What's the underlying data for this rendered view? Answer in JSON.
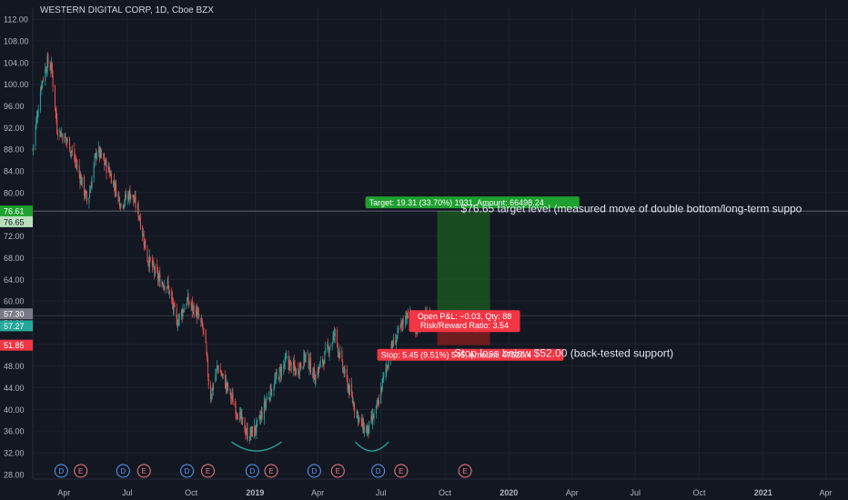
{
  "header": {
    "title": "WESTERN DIGITAL CORP, 1D, Cboe BZX"
  },
  "colors": {
    "background": "#131722",
    "grid": "#1e222d",
    "text": "#b2b5be",
    "up": "#26a69a",
    "down": "#ef5350",
    "target_zone": "#1b5e20",
    "stop_zone": "#7f1d1d",
    "target_label": "#1e9f2e",
    "stop_label": "#f23645",
    "cup_arc": "#26a69a",
    "dividend_badge": "#2962ff",
    "earnings_badge": "#f23645"
  },
  "chart_data": {
    "type": "candlestick",
    "ylim": [
      26,
      114
    ],
    "y_ticks": [
      "112.00",
      "108.00",
      "104.00",
      "100.00",
      "96.00",
      "92.00",
      "88.00",
      "84.00",
      "80.00",
      "76.00",
      "72.00",
      "68.00",
      "64.00",
      "60.00",
      "56.00",
      "52.00",
      "48.00",
      "44.00",
      "40.00",
      "36.00",
      "32.00",
      "28.00"
    ],
    "x_labels": [
      {
        "label": "Apr",
        "date": "2018-04-01"
      },
      {
        "label": "Jul",
        "date": "2018-07-01"
      },
      {
        "label": "Oct",
        "date": "2018-10-01"
      },
      {
        "label": "2019",
        "date": "2019-01-01"
      },
      {
        "label": "Apr",
        "date": "2019-04-01"
      },
      {
        "label": "Jul",
        "date": "2019-07-01"
      },
      {
        "label": "Oct",
        "date": "2019-10-01"
      },
      {
        "label": "2020",
        "date": "2020-01-01"
      },
      {
        "label": "Apr",
        "date": "2020-04-01"
      },
      {
        "label": "Jul",
        "date": "2020-07-01"
      },
      {
        "label": "Oct",
        "date": "2020-10-01"
      },
      {
        "label": "2021",
        "date": "2021-01-01"
      },
      {
        "label": "Apr",
        "date": "2021-04-01"
      }
    ],
    "x_range": [
      "2018-02-15",
      "2021-05-03"
    ],
    "price_path": [
      {
        "date": "2018-02-15",
        "close": 88
      },
      {
        "date": "2018-02-27",
        "close": 100
      },
      {
        "date": "2018-03-08",
        "close": 104
      },
      {
        "date": "2018-03-14",
        "close": 103
      },
      {
        "date": "2018-03-22",
        "close": 92
      },
      {
        "date": "2018-04-08",
        "close": 89
      },
      {
        "date": "2018-04-22",
        "close": 84
      },
      {
        "date": "2018-05-05",
        "close": 78
      },
      {
        "date": "2018-05-18",
        "close": 88
      },
      {
        "date": "2018-06-05",
        "close": 84
      },
      {
        "date": "2018-06-22",
        "close": 78
      },
      {
        "date": "2018-07-06",
        "close": 80
      },
      {
        "date": "2018-07-18",
        "close": 76
      },
      {
        "date": "2018-07-30",
        "close": 68
      },
      {
        "date": "2018-08-15",
        "close": 64
      },
      {
        "date": "2018-08-28",
        "close": 63
      },
      {
        "date": "2018-09-10",
        "close": 56
      },
      {
        "date": "2018-09-25",
        "close": 60
      },
      {
        "date": "2018-10-08",
        "close": 58
      },
      {
        "date": "2018-10-20",
        "close": 54
      },
      {
        "date": "2018-10-28",
        "close": 42
      },
      {
        "date": "2018-11-08",
        "close": 48
      },
      {
        "date": "2018-11-22",
        "close": 44
      },
      {
        "date": "2018-12-05",
        "close": 40
      },
      {
        "date": "2018-12-22",
        "close": 35
      },
      {
        "date": "2019-01-05",
        "close": 37
      },
      {
        "date": "2019-01-18",
        "close": 42
      },
      {
        "date": "2019-02-02",
        "close": 46
      },
      {
        "date": "2019-02-15",
        "close": 49
      },
      {
        "date": "2019-03-01",
        "close": 47
      },
      {
        "date": "2019-03-15",
        "close": 50
      },
      {
        "date": "2019-03-28",
        "close": 46
      },
      {
        "date": "2019-04-12",
        "close": 50
      },
      {
        "date": "2019-04-26",
        "close": 54
      },
      {
        "date": "2019-05-06",
        "close": 48
      },
      {
        "date": "2019-05-20",
        "close": 42
      },
      {
        "date": "2019-06-03",
        "close": 37
      },
      {
        "date": "2019-06-12",
        "close": 36
      },
      {
        "date": "2019-06-25",
        "close": 40
      },
      {
        "date": "2019-07-05",
        "close": 46
      },
      {
        "date": "2019-07-18",
        "close": 52
      },
      {
        "date": "2019-07-30",
        "close": 55
      },
      {
        "date": "2019-08-08",
        "close": 58
      },
      {
        "date": "2019-08-20",
        "close": 55
      },
      {
        "date": "2019-09-01",
        "close": 57
      },
      {
        "date": "2019-09-10",
        "close": 57.3
      }
    ],
    "price_levels": [
      {
        "label": "76.61",
        "color": "#1e9f2e"
      },
      {
        "label": "76.65",
        "color": "#b8e0bc"
      },
      {
        "label": "57.30",
        "color": "#787b86"
      },
      {
        "label": "57.27",
        "color": "#26a69a"
      },
      {
        "label": "51.85",
        "color": "#f23645"
      }
    ],
    "position": {
      "entry": 57.3,
      "target": 76.61,
      "stop": 51.85,
      "start_date": "2019-09-20",
      "end_date": "2019-12-05",
      "target_label": "Target: 19.31 (33.70%) 1931, Amount: 66498.24",
      "pnl_label": "Open P&L: −0.03, Qty: 88",
      "rr_label": "Risk/Reward Ratio: 3.54",
      "stop_label": "Stop: 5.45 (9.51%) 545, Amount: 47520.4"
    },
    "annotations": [
      {
        "text": "$76.65 target level (measured move of double bottom/long-term suppo",
        "price": 76.4,
        "date": "2019-10-20"
      },
      {
        "text": "Stop loss below $52.00 (back-tested support)",
        "price": 49.7,
        "date": "2019-10-25"
      }
    ],
    "cups": [
      {
        "start": "2018-11-28",
        "end": "2019-02-08",
        "price": 34
      },
      {
        "start": "2019-05-25",
        "end": "2019-07-12",
        "price": 34
      }
    ],
    "events": [
      {
        "type": "D",
        "date": "2018-03-28"
      },
      {
        "type": "E",
        "date": "2018-04-25"
      },
      {
        "type": "D",
        "date": "2018-06-25"
      },
      {
        "type": "E",
        "date": "2018-07-25"
      },
      {
        "type": "D",
        "date": "2018-09-25"
      },
      {
        "type": "E",
        "date": "2018-10-25"
      },
      {
        "type": "D",
        "date": "2018-12-28"
      },
      {
        "type": "E",
        "date": "2019-01-24"
      },
      {
        "type": "D",
        "date": "2019-03-27"
      },
      {
        "type": "E",
        "date": "2019-04-30"
      },
      {
        "type": "D",
        "date": "2019-06-27"
      },
      {
        "type": "E",
        "date": "2019-07-30"
      },
      {
        "type": "E",
        "date": "2019-10-30"
      }
    ]
  }
}
